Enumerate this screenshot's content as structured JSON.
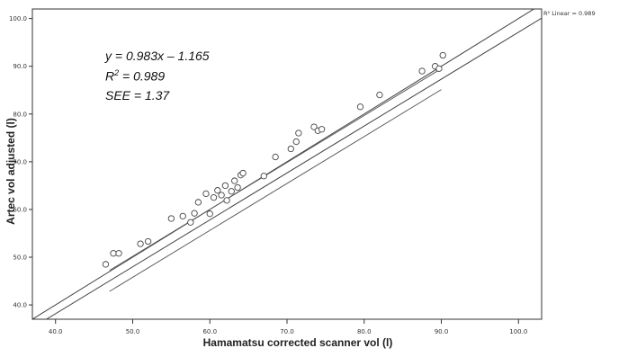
{
  "chart_data": {
    "type": "scatter",
    "xlabel": "Hamamatsu corrected scanner vol (l)",
    "ylabel": "Artec vol adjusted (l)",
    "xlim": [
      37.0,
      103.0
    ],
    "ylim": [
      37.0,
      102.0
    ],
    "x_ticks": [
      "40.0",
      "50.0",
      "60.0",
      "70.0",
      "80.0",
      "90.0",
      "100.0"
    ],
    "y_ticks": [
      "40.0",
      "50.0",
      "60.0",
      "70.0",
      "80.0",
      "90.0",
      "100.0"
    ],
    "grid": false,
    "legend": {
      "position": "top-right",
      "label": "R² Linear = 0.989"
    },
    "fit_line": {
      "slope": 0.983,
      "intercept": -1.165
    },
    "identity_line": {
      "slope": 1.0,
      "intercept": 0.0
    },
    "confidence_band": {
      "half_width": 2.2,
      "x_start": 47.0,
      "x_end": 90.0
    },
    "annotations": {
      "equation": "y = 0.983x – 1.165",
      "r2_prefix": "R",
      "r2_exponent": "2",
      "r2_value": " = 0.989",
      "see": "SEE = 1.37"
    },
    "points": [
      {
        "x": 46.5,
        "y": 48.5
      },
      {
        "x": 47.5,
        "y": 50.8
      },
      {
        "x": 48.2,
        "y": 50.8
      },
      {
        "x": 51.0,
        "y": 52.8
      },
      {
        "x": 52.0,
        "y": 53.3
      },
      {
        "x": 55.0,
        "y": 58.1
      },
      {
        "x": 56.5,
        "y": 58.6
      },
      {
        "x": 57.5,
        "y": 57.3
      },
      {
        "x": 58.0,
        "y": 59.2
      },
      {
        "x": 58.5,
        "y": 61.5
      },
      {
        "x": 59.5,
        "y": 63.3
      },
      {
        "x": 60.0,
        "y": 59.1
      },
      {
        "x": 60.5,
        "y": 62.5
      },
      {
        "x": 61.0,
        "y": 64.0
      },
      {
        "x": 61.5,
        "y": 63.0
      },
      {
        "x": 62.0,
        "y": 65.0
      },
      {
        "x": 62.2,
        "y": 61.9
      },
      {
        "x": 62.8,
        "y": 63.8
      },
      {
        "x": 63.2,
        "y": 66.0
      },
      {
        "x": 63.6,
        "y": 64.6
      },
      {
        "x": 64.0,
        "y": 67.2
      },
      {
        "x": 64.3,
        "y": 67.6
      },
      {
        "x": 67.0,
        "y": 67.0
      },
      {
        "x": 68.5,
        "y": 71.0
      },
      {
        "x": 70.5,
        "y": 72.7
      },
      {
        "x": 71.2,
        "y": 74.2
      },
      {
        "x": 71.5,
        "y": 76.0
      },
      {
        "x": 73.5,
        "y": 77.3
      },
      {
        "x": 74.0,
        "y": 76.5
      },
      {
        "x": 74.5,
        "y": 76.8
      },
      {
        "x": 79.5,
        "y": 81.5
      },
      {
        "x": 82.0,
        "y": 84.0
      },
      {
        "x": 87.5,
        "y": 89.0
      },
      {
        "x": 89.2,
        "y": 90.0
      },
      {
        "x": 89.7,
        "y": 89.5
      },
      {
        "x": 90.2,
        "y": 92.3
      }
    ]
  }
}
